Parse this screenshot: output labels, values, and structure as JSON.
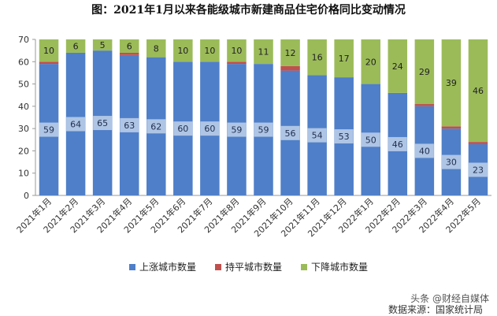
{
  "title": "图：2021年1月以来各能级城市新建商品住宅价格同比变动情况",
  "legend": [
    {
      "label": "上涨城市数量",
      "color": "#4f7fc8"
    },
    {
      "label": "持平城市数量",
      "color": "#c0504d"
    },
    {
      "label": "下降城市数量",
      "color": "#9bbb59"
    }
  ],
  "source": "数据来源：国家统计局",
  "watermark": "头条 @财经自媒体",
  "chart_data": {
    "type": "bar",
    "stacked": true,
    "categories": [
      "2021年1月",
      "2021年2月",
      "2021年3月",
      "2021年4月",
      "2021年5月",
      "2021年6月",
      "2021年7月",
      "2021年8月",
      "2021年9月",
      "2021年10月",
      "2021年11月",
      "2021年12月",
      "2022年1月",
      "2022年2月",
      "2022年3月",
      "2022年4月",
      "2022年5月"
    ],
    "series": [
      {
        "name": "上涨城市数量",
        "color": "#4f7fc8",
        "values": [
          59,
          64,
          65,
          63,
          62,
          60,
          60,
          59,
          59,
          56,
          54,
          53,
          50,
          46,
          40,
          30,
          23
        ]
      },
      {
        "name": "持平城市数量",
        "color": "#c0504d",
        "values": [
          1,
          0,
          0,
          1,
          0,
          0,
          0,
          1,
          0,
          2,
          0,
          0,
          0,
          0,
          1,
          1,
          1
        ]
      },
      {
        "name": "下降城市数量",
        "color": "#9bbb59",
        "values": [
          10,
          6,
          5,
          6,
          8,
          10,
          10,
          10,
          11,
          12,
          16,
          17,
          20,
          24,
          29,
          39,
          46
        ]
      }
    ],
    "ylim": [
      0,
      70
    ],
    "yticks": [
      0,
      10,
      20,
      30,
      40,
      50,
      60,
      70
    ],
    "grid": false,
    "legend_position": "bottom"
  }
}
